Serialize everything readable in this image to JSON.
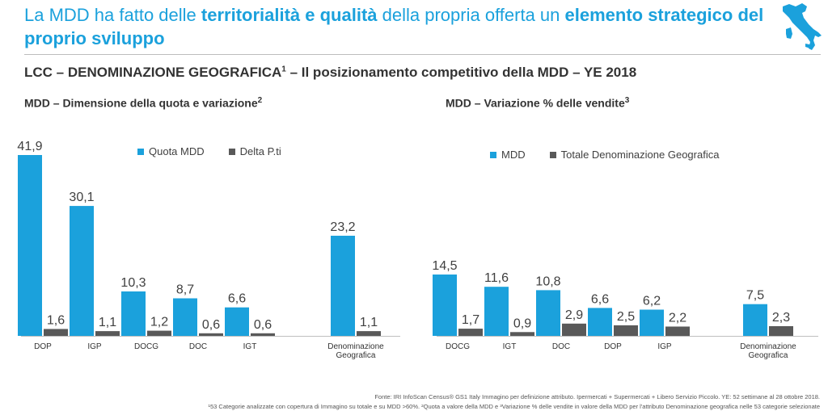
{
  "header": {
    "title_part1": "La MDD ha fatto delle ",
    "title_bold1": "territorialità e qualità",
    "title_part2": " della propria offerta un ",
    "title_bold2": "elemento strategico del proprio sviluppo",
    "subtitle": "LCC – DENOMINAZIONE GEOGRAFICA",
    "subtitle_sup": "1",
    "subtitle_rest": " – Il posizionamento competitivo della MDD – YE 2018"
  },
  "colors": {
    "blue": "#1ba1dc",
    "dark": "#595959",
    "text": "#333333"
  },
  "logo": {
    "icon": "italy-map-icon"
  },
  "chart_data": [
    {
      "type": "bar",
      "title": "MDD – Dimensione della quota e variazione",
      "title_sup": "2",
      "categories": [
        "DOP",
        "IGP",
        "DOCG",
        "DOC",
        "IGT",
        "Denominazione Geografica"
      ],
      "series": [
        {
          "name": "Quota MDD",
          "values": [
            41.9,
            30.1,
            10.3,
            8.7,
            6.6,
            23.2
          ]
        },
        {
          "name": "Delta P.ti",
          "values": [
            1.6,
            1.1,
            1.2,
            0.6,
            0.6,
            1.1
          ]
        }
      ],
      "value_labels": [
        [
          "41,9",
          "30,1",
          "10,3",
          "8,7",
          "6,6",
          "23,2"
        ],
        [
          "1,6",
          "1,1",
          "1,2",
          "0,6",
          "0,6",
          "1,1"
        ]
      ],
      "ylim": [
        0,
        41.9
      ],
      "legend": "top"
    },
    {
      "type": "bar",
      "title": "MDD – Variazione % delle vendite",
      "title_sup": "3",
      "categories": [
        "DOCG",
        "IGT",
        "DOC",
        "DOP",
        "IGP",
        "Denominazione Geografica"
      ],
      "series": [
        {
          "name": "MDD",
          "values": [
            14.5,
            11.6,
            10.8,
            6.6,
            6.2,
            7.5
          ]
        },
        {
          "name": "Totale Denominazione Geografica",
          "values": [
            1.7,
            0.9,
            2.9,
            2.5,
            2.2,
            2.3
          ]
        }
      ],
      "value_labels": [
        [
          "14,5",
          "11,6",
          "10,8",
          "6,6",
          "6,2",
          "7,5"
        ],
        [
          "1,7",
          "0,9",
          "2,9",
          "2,5",
          "2,2",
          "2,3"
        ]
      ],
      "ylim": [
        0,
        14.5
      ],
      "legend": "top"
    }
  ],
  "footnotes": {
    "source": "Fonte: IRI InfoScan Census® GS1 Italy Immagino per definizione attributo. Ipermercati + Supermercati + Libero Servizio Piccolo. YE: 52 settimane al 28 ottobre 2018.",
    "notes": "¹53 Categorie analizzate con copertura di Immagino su totale e su MDD >60%. ²Quota a valore della MDD e ³Variazione % delle vendite in valore della MDD per l'attributo Denominazione geografica nelle 53 categorie selezionate"
  }
}
